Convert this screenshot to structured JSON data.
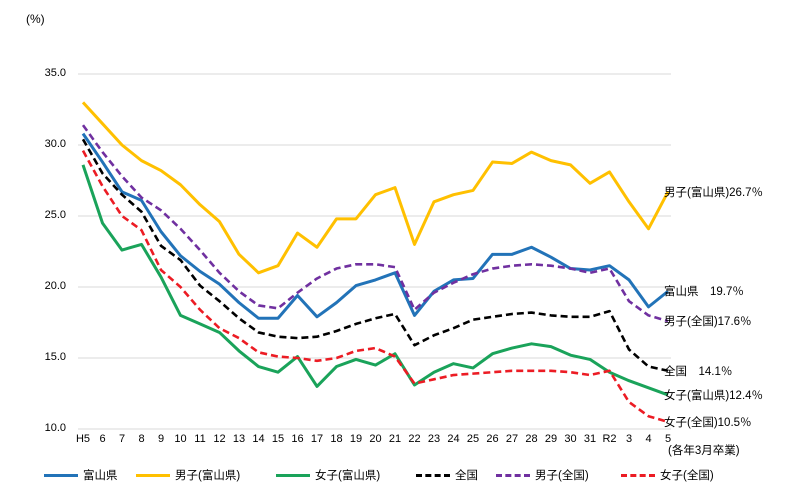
{
  "unit_label": "(%)",
  "footnote": "(各年3月卒業)",
  "chart_data": {
    "type": "line",
    "title": "",
    "xlabel": "",
    "ylabel": "(%)",
    "ylim": [
      10.0,
      35.0
    ],
    "ytick_step": 5.0,
    "ytick_labels": [
      "35.0",
      "30.0",
      "25.0",
      "20.0",
      "15.0",
      "10.0"
    ],
    "grid": true,
    "legend_position": "bottom",
    "categories": [
      "H5",
      "6",
      "7",
      "8",
      "9",
      "10",
      "11",
      "12",
      "13",
      "14",
      "15",
      "16",
      "17",
      "18",
      "19",
      "20",
      "21",
      "22",
      "23",
      "24",
      "25",
      "26",
      "27",
      "28",
      "29",
      "30",
      "31",
      "R2",
      "3",
      "4",
      "5"
    ],
    "series": [
      {
        "name": "富山県",
        "color": "#2273B8",
        "dash": false,
        "end_label": "富山県　19.7％",
        "end_value": 19.7,
        "values": [
          30.8,
          28.8,
          26.7,
          26.1,
          23.9,
          22.2,
          21.1,
          20.2,
          18.9,
          17.8,
          17.8,
          19.4,
          17.9,
          18.9,
          20.1,
          20.5,
          21.0,
          18.0,
          19.7,
          20.5,
          20.6,
          22.3,
          22.3,
          22.8,
          22.1,
          21.3,
          21.2,
          21.5,
          20.5,
          18.6,
          19.7
        ]
      },
      {
        "name": "男子(富山県)",
        "color": "#FFC000",
        "dash": false,
        "end_label": "男子(富山県)26.7％",
        "end_value": 26.7,
        "values": [
          33.0,
          31.5,
          30.0,
          28.9,
          28.2,
          27.2,
          25.8,
          24.6,
          22.3,
          21.0,
          21.5,
          23.8,
          22.8,
          24.8,
          24.8,
          26.5,
          27.0,
          23.0,
          26.0,
          26.5,
          26.8,
          28.8,
          28.7,
          29.5,
          28.9,
          28.6,
          27.3,
          28.1,
          26.0,
          24.1,
          26.7
        ]
      },
      {
        "name": "女子(富山県)",
        "color": "#1AA35A",
        "dash": false,
        "end_label": "女子(富山県)12.4％",
        "end_value": 12.4,
        "values": [
          28.6,
          24.5,
          22.6,
          23.0,
          20.7,
          18.0,
          17.4,
          16.8,
          15.5,
          14.4,
          14.0,
          15.1,
          13.0,
          14.4,
          14.9,
          14.5,
          15.3,
          13.1,
          14.0,
          14.6,
          14.3,
          15.3,
          15.7,
          16.0,
          15.8,
          15.2,
          14.9,
          14.0,
          13.4,
          12.9,
          12.4
        ]
      },
      {
        "name": "全国",
        "color": "#000000",
        "dash": true,
        "end_label": "全国　14.1％",
        "end_value": 14.1,
        "values": [
          30.4,
          28.0,
          26.5,
          25.3,
          22.9,
          21.9,
          20.1,
          19.0,
          17.8,
          16.8,
          16.5,
          16.4,
          16.5,
          16.9,
          17.4,
          17.8,
          18.1,
          15.9,
          16.6,
          17.1,
          17.7,
          17.9,
          18.1,
          18.2,
          18.0,
          17.9,
          17.9,
          18.3,
          15.6,
          14.4,
          14.1
        ]
      },
      {
        "name": "男子(全国)",
        "color": "#7030A0",
        "dash": true,
        "end_label": "男子(全国)17.6％",
        "end_value": 17.6,
        "values": [
          31.4,
          29.5,
          27.8,
          26.3,
          25.4,
          24.1,
          22.6,
          21.0,
          19.7,
          18.7,
          18.5,
          19.6,
          20.6,
          21.3,
          21.6,
          21.6,
          21.4,
          18.4,
          19.6,
          20.3,
          20.9,
          21.3,
          21.5,
          21.6,
          21.5,
          21.3,
          21.0,
          21.3,
          19.0,
          18.0,
          17.6
        ]
      },
      {
        "name": "女子(全国)",
        "color": "#EC1C24",
        "dash": true,
        "end_label": "女子(全国)10.5％",
        "end_value": 10.5,
        "values": [
          29.6,
          27.1,
          25.0,
          24.0,
          21.2,
          20.0,
          18.4,
          17.1,
          16.4,
          15.4,
          15.1,
          15.0,
          14.8,
          15.0,
          15.5,
          15.7,
          15.1,
          13.2,
          13.5,
          13.8,
          13.9,
          14.0,
          14.1,
          14.1,
          14.1,
          14.0,
          13.8,
          14.1,
          11.9,
          10.9,
          10.5
        ]
      }
    ],
    "colors": {
      "gridline": "#D9D9D9",
      "text": "#000000"
    }
  }
}
